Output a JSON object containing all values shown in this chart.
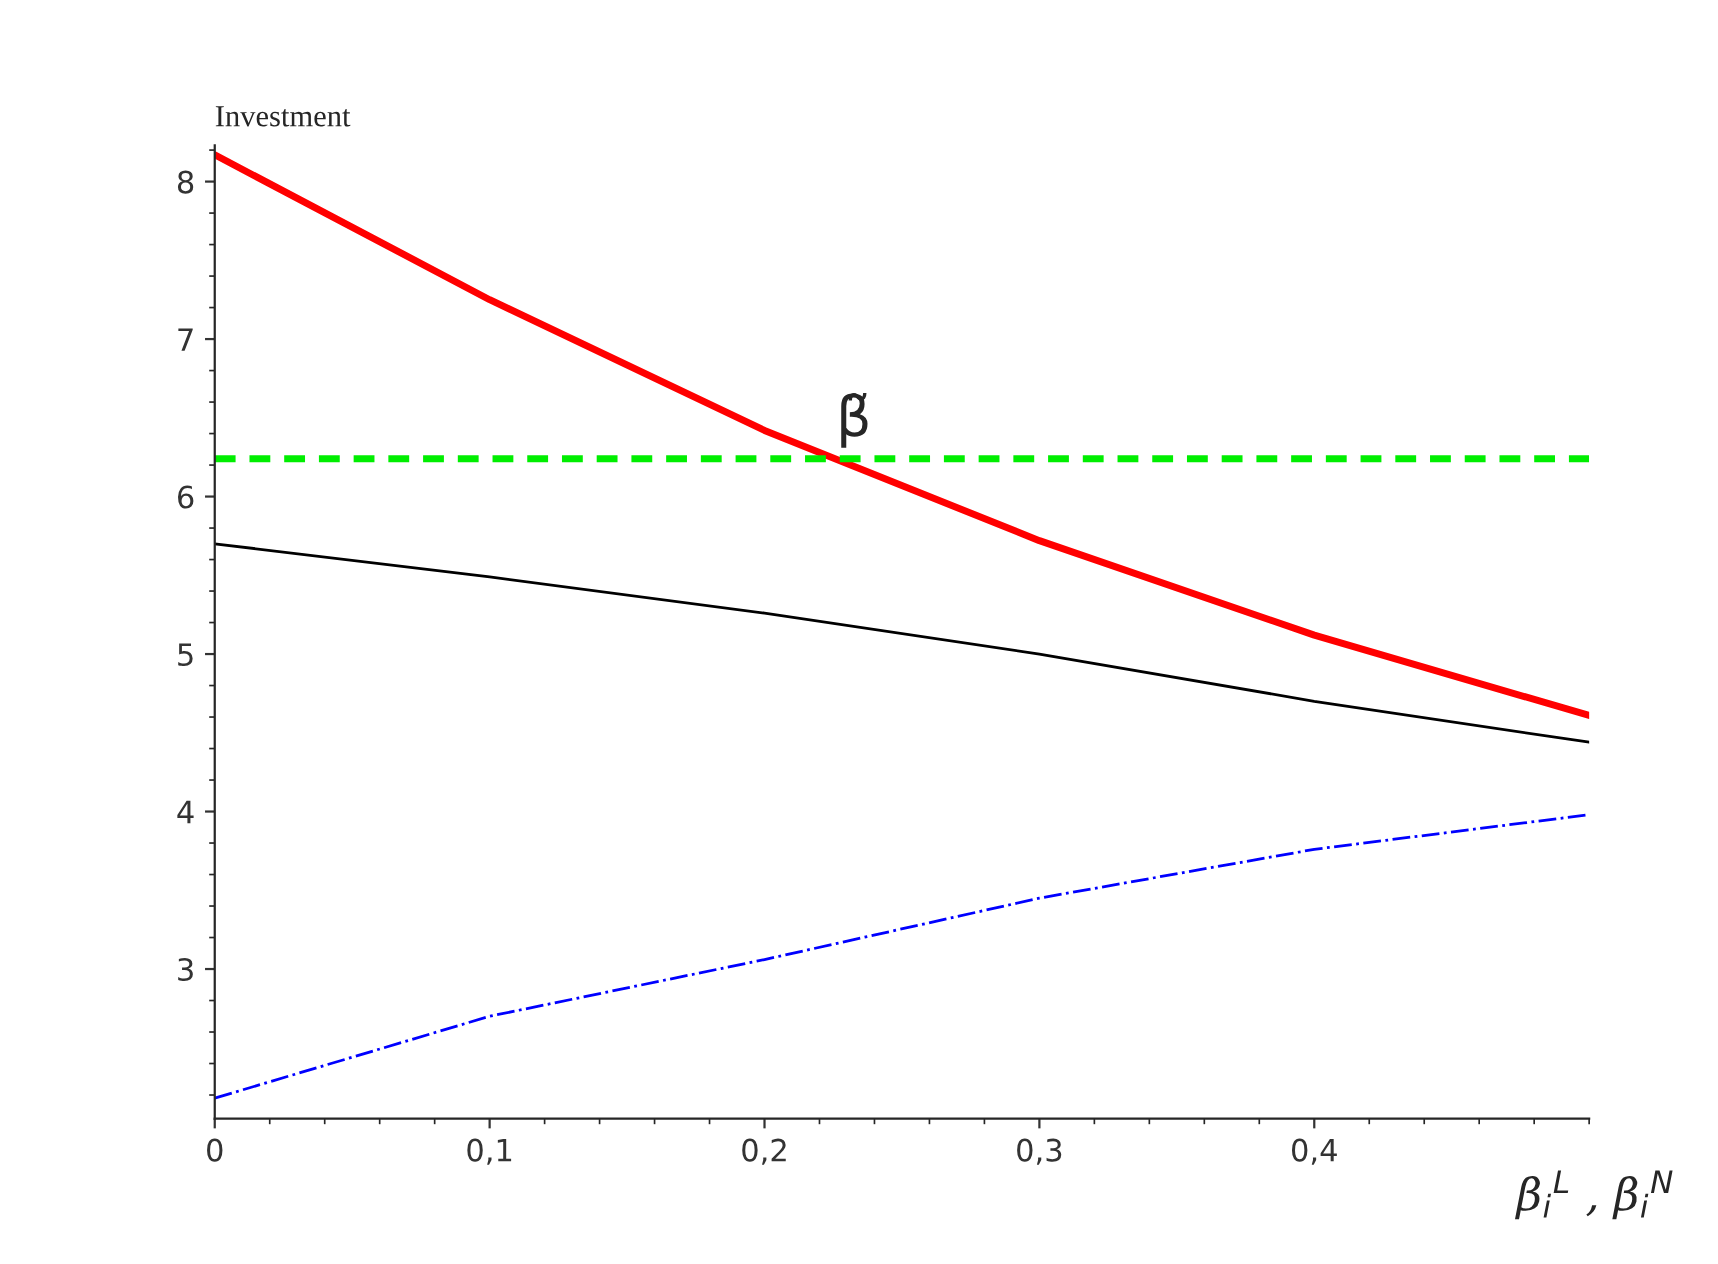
{
  "chart_data": {
    "type": "line",
    "xlabel": "β$_{i}$$^{L}$ , β$_{i}$$^{N}$",
    "ylabel": "Investment",
    "x": [
      0,
      0.1,
      0.2,
      0.3,
      0.4,
      0.5
    ],
    "series": [
      {
        "color": "#ff0000",
        "values": [
          8.17,
          7.25,
          6.42,
          5.72,
          5.12,
          4.61
        ]
      },
      {
        "color": "#000000",
        "values": [
          5.7,
          5.49,
          5.26,
          5.0,
          4.7,
          4.44
        ]
      },
      {
        "color": "#0000ff",
        "values": [
          2.18,
          2.7,
          3.06,
          3.45,
          3.76,
          3.98
        ],
        "line_style": "dashdot"
      }
    ],
    "ref_lines": [
      {
        "axis": "y",
        "value": 6.24,
        "color": "#00ee00",
        "line_style": "dashed"
      }
    ],
    "annotations": [
      {
        "text": "β̃",
        "x": 0.224,
        "y": 6.24
      }
    ],
    "xlim": [
      0,
      0.5
    ],
    "ylim": [
      2.05,
      8.23
    ],
    "xticks": [
      {
        "value": 0,
        "label": "0"
      },
      {
        "value": 0.1,
        "label": "0,1"
      },
      {
        "value": 0.2,
        "label": "0,2"
      },
      {
        "value": 0.3,
        "label": "0,3"
      },
      {
        "value": 0.4,
        "label": "0,4"
      }
    ],
    "yticks": [
      3,
      4,
      5,
      6,
      7,
      8
    ],
    "grid": false,
    "legend": false,
    "marker": "none"
  }
}
